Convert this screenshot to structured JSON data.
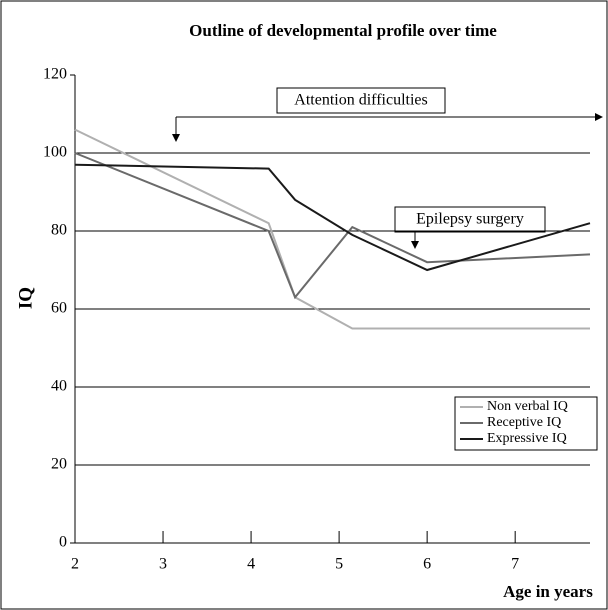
{
  "chart_data": {
    "type": "line",
    "title": "Outline of developmental profile over time",
    "xlabel": "Age in years",
    "ylabel": "IQ",
    "xlim": [
      2,
      7.85
    ],
    "xticks": [
      2,
      3,
      4,
      5,
      6,
      7
    ],
    "ylim": [
      0,
      120
    ],
    "yticks": [
      0,
      20,
      40,
      60,
      80,
      100,
      120
    ],
    "grid": true,
    "series": [
      {
        "name": "Non verbal IQ",
        "color": "#b0b0b0",
        "x": [
          2,
          4.2,
          4.5,
          5.15,
          7.85
        ],
        "values": [
          106,
          82,
          63,
          55,
          55
        ]
      },
      {
        "name": "Receptive IQ",
        "color": "#6a6a6a",
        "x": [
          2,
          4.2,
          4.5,
          5.15,
          6,
          7.85
        ],
        "values": [
          100,
          80,
          63,
          81,
          72,
          74
        ]
      },
      {
        "name": "Expressive IQ",
        "color": "#1a1a1a",
        "x": [
          2,
          4.2,
          4.5,
          5.15,
          6,
          7.85
        ],
        "values": [
          97,
          96,
          88,
          79,
          70,
          82
        ]
      }
    ],
    "annotations": [
      "Attention difficulties",
      "Epilepsy surgery"
    ]
  }
}
